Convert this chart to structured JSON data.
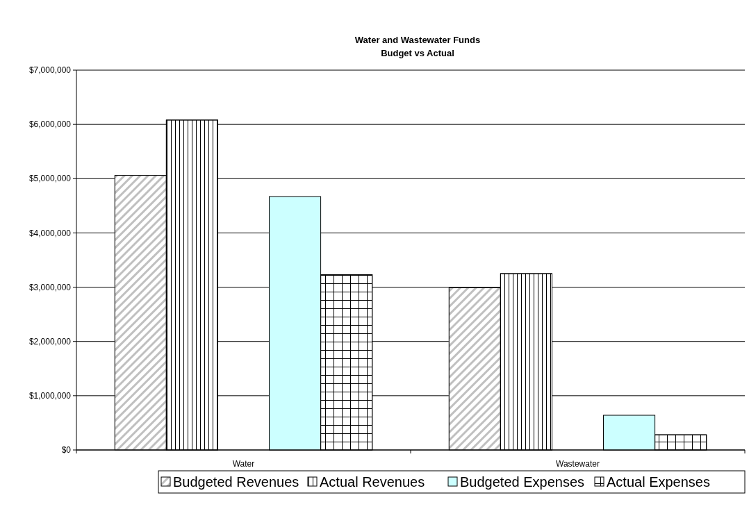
{
  "chart_data": {
    "type": "bar",
    "title": "Water and Wastewater Funds\nBudget vs Actual",
    "categories": [
      "Water",
      "Wastewater"
    ],
    "series": [
      {
        "name": "Budgeted Revenues",
        "color": "#c0c0c0",
        "values": [
          5060000,
          2990000
        ]
      },
      {
        "name": "Actual Revenues",
        "color": "#000000",
        "values": [
          6080000,
          3250000
        ]
      },
      {
        "name": "Budgeted Expenses",
        "color": "#ccffff",
        "values": [
          4670000,
          640000
        ]
      },
      {
        "name": "Actual Expenses",
        "color": "#000000",
        "values": [
          3230000,
          280000
        ]
      }
    ],
    "ylim": [
      0,
      7000000
    ],
    "yticks": [
      {
        "value": 0,
        "label": "$0"
      },
      {
        "value": 1000000,
        "label": "$1,000,000"
      },
      {
        "value": 2000000,
        "label": "$2,000,000"
      },
      {
        "value": 3000000,
        "label": "$3,000,000"
      },
      {
        "value": 4000000,
        "label": "$4,000,000"
      },
      {
        "value": 5000000,
        "label": "$5,000,000"
      },
      {
        "value": 6000000,
        "label": "$6,000,000"
      },
      {
        "value": 7000000,
        "label": "$7,000,000"
      }
    ],
    "grid": "y",
    "legend": "bottom"
  }
}
